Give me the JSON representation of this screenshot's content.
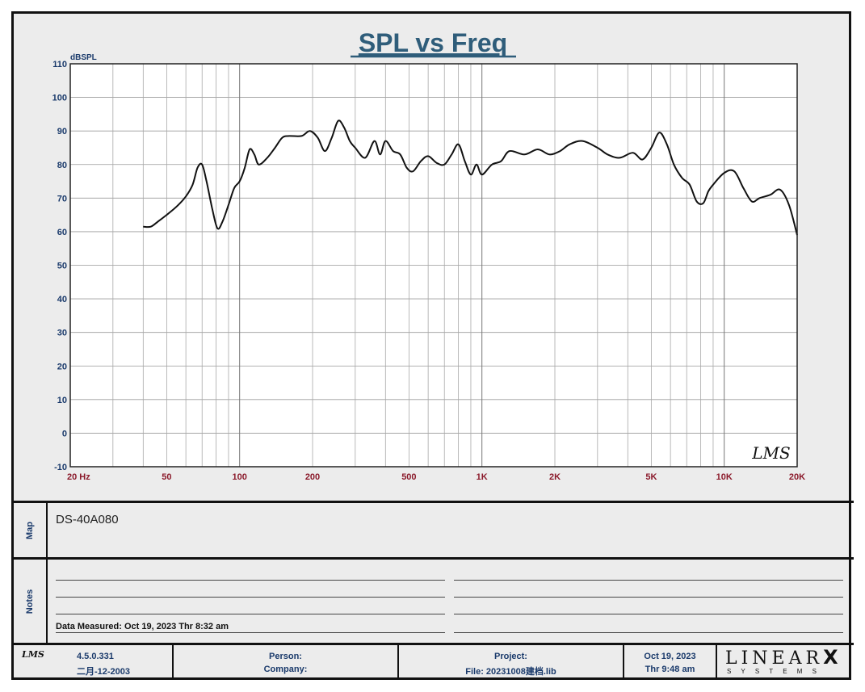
{
  "chart_data": {
    "type": "line",
    "title": "SPL vs Freq",
    "ylabel": "dBSPL",
    "xlabel": "",
    "xscale": "log",
    "xlim": [
      20,
      20000
    ],
    "ylim": [
      -10,
      110
    ],
    "yticks": [
      -10,
      0,
      10,
      20,
      30,
      40,
      50,
      60,
      70,
      80,
      90,
      100,
      110
    ],
    "xticks": [
      {
        "value": 20,
        "label": "20  Hz"
      },
      {
        "value": 50,
        "label": "50"
      },
      {
        "value": 100,
        "label": "100"
      },
      {
        "value": 200,
        "label": "200"
      },
      {
        "value": 500,
        "label": "500"
      },
      {
        "value": 1000,
        "label": "1K"
      },
      {
        "value": 2000,
        "label": "2K"
      },
      {
        "value": 5000,
        "label": "5K"
      },
      {
        "value": 10000,
        "label": "10K"
      },
      {
        "value": 20000,
        "label": "20K"
      }
    ],
    "grid": true,
    "watermark": "LMS",
    "series": [
      {
        "name": "DS-40A080",
        "color": "#111111",
        "x": [
          40,
          43,
          46,
          50,
          55,
          60,
          64,
          67,
          70,
          73,
          77,
          81,
          85,
          90,
          95,
          100,
          105,
          110,
          115,
          120,
          130,
          140,
          150,
          160,
          180,
          195,
          210,
          225,
          240,
          255,
          270,
          285,
          300,
          330,
          360,
          380,
          400,
          430,
          460,
          490,
          520,
          560,
          600,
          650,
          700,
          750,
          800,
          850,
          900,
          950,
          1000,
          1100,
          1200,
          1300,
          1500,
          1700,
          1900,
          2100,
          2300,
          2600,
          3000,
          3300,
          3700,
          4200,
          4600,
          5000,
          5400,
          5800,
          6200,
          6700,
          7200,
          7700,
          8200,
          8600,
          9000,
          10000,
          11000,
          12000,
          13000,
          14000,
          15500,
          17000,
          18500,
          20000
        ],
        "y": [
          61.5,
          61.5,
          63,
          65,
          67.5,
          70.5,
          74,
          79,
          80,
          75,
          67,
          61,
          63,
          68,
          73,
          75,
          79,
          84.5,
          83,
          80,
          82,
          85,
          88,
          88.5,
          88.5,
          90,
          88,
          84,
          88,
          93,
          91,
          87,
          85,
          82,
          87,
          83,
          87,
          84,
          83,
          79,
          78,
          81,
          82.5,
          80.5,
          80,
          83,
          86,
          81,
          77,
          80,
          77,
          80,
          81,
          84,
          83,
          84.5,
          83,
          84,
          86,
          87,
          85,
          83,
          82,
          83.5,
          81.5,
          85,
          89.5,
          86,
          80,
          76,
          74,
          69,
          68.5,
          72,
          74,
          77.5,
          78,
          73,
          69,
          70,
          71,
          72.5,
          68,
          59
        ]
      }
    ]
  },
  "map": {
    "label": "Map",
    "name": "DS-40A080"
  },
  "notes": {
    "label": "Notes",
    "measured": "Data Measured: Oct 19, 2023  Thr  8:32 am"
  },
  "footer": {
    "logo": "LMS",
    "version": "4.5.0.331",
    "build_date": "二月-12-2003",
    "person_label": "Person:",
    "company_label": "Company:",
    "project_label": "Project:",
    "file_label": "File: 20231008建档.lib",
    "date": "Oct 19, 2023",
    "time": "Thr  9:48 am",
    "brand_main": "LINEAR",
    "brand_x": "X",
    "brand_sub": "S Y S T E M S"
  }
}
